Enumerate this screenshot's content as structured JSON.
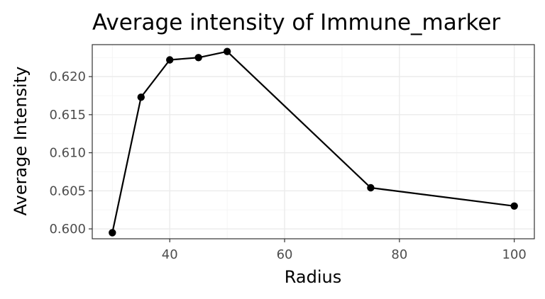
{
  "chart_data": {
    "type": "line",
    "title": "Average intensity of Immune_marker",
    "xlabel": "Radius",
    "ylabel": "Average Intensity",
    "x": [
      30,
      35,
      40,
      45,
      50,
      75,
      100
    ],
    "series": [
      {
        "values": [
          0.5995,
          0.6173,
          0.6222,
          0.6225,
          0.6233,
          0.6054,
          0.603
        ]
      }
    ],
    "xlim": [
      26.5,
      103.5
    ],
    "ylim": [
      0.5987,
      0.6242
    ],
    "x_ticks": [
      40,
      60,
      80,
      100
    ],
    "x_tick_labels": [
      "40",
      "60",
      "80",
      "100"
    ],
    "y_ticks": [
      0.6,
      0.605,
      0.61,
      0.615,
      0.62
    ],
    "y_tick_labels": [
      "0.600",
      "0.605",
      "0.610",
      "0.615",
      "0.620"
    ],
    "grid": true,
    "legend": "none",
    "colors": {
      "line": "#000000",
      "point": "#000000",
      "grid": "#ebebeb",
      "panel_border": "#333333"
    }
  }
}
